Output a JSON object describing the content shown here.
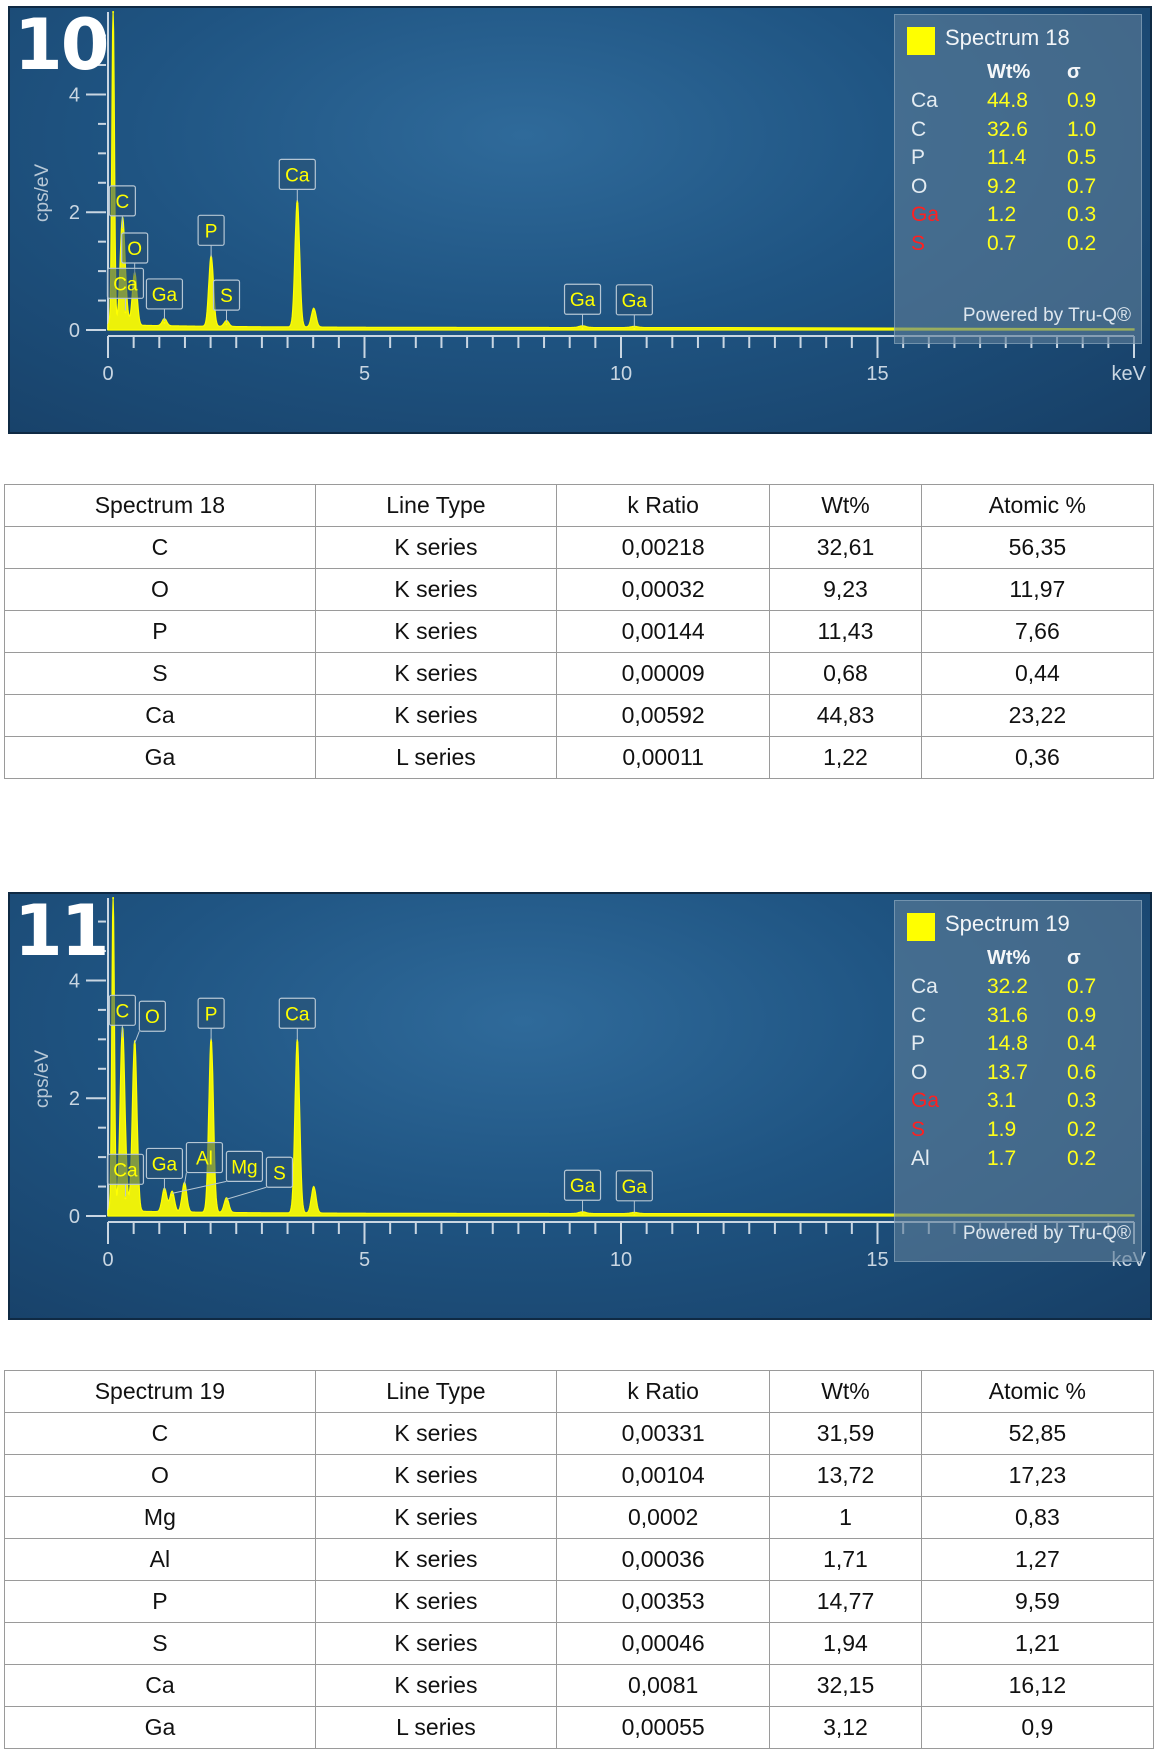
{
  "figures": [
    {
      "number": "10",
      "spectrum_title": "Spectrum 18",
      "powered_by": "Powered by Tru-Q®",
      "legend_headers": {
        "wt": "Wt%",
        "sigma": "σ"
      },
      "legend_rows": [
        {
          "el": "Ca",
          "wt": "44.8",
          "sigma": "0.9",
          "red": false
        },
        {
          "el": "C",
          "wt": "32.6",
          "sigma": "1.0",
          "red": false
        },
        {
          "el": "P",
          "wt": "11.4",
          "sigma": "0.5",
          "red": false
        },
        {
          "el": "O",
          "wt": "9.2",
          "sigma": "0.7",
          "red": false
        },
        {
          "el": "Ga",
          "wt": "1.2",
          "sigma": "0.3",
          "red": true
        },
        {
          "el": "S",
          "wt": "0.7",
          "sigma": "0.2",
          "red": true
        }
      ],
      "table": {
        "headers": [
          "Spectrum 18",
          "Line Type",
          "k Ratio",
          "Wt%",
          "Atomic %"
        ],
        "rows": [
          [
            "C",
            "K series",
            "0,00218",
            "32,61",
            "56,35"
          ],
          [
            "O",
            "K series",
            "0,00032",
            "9,23",
            "11,97"
          ],
          [
            "P",
            "K series",
            "0,00144",
            "11,43",
            "7,66"
          ],
          [
            "S",
            "K series",
            "0,00009",
            "0,68",
            "0,44"
          ],
          [
            "Ca",
            "K series",
            "0,00592",
            "44,83",
            "23,22"
          ],
          [
            "Ga",
            "L series",
            "0,00011",
            "1,22",
            "0,36"
          ]
        ]
      }
    },
    {
      "number": "11",
      "spectrum_title": "Spectrum 19",
      "powered_by": "Powered by Tru-Q®",
      "legend_headers": {
        "wt": "Wt%",
        "sigma": "σ"
      },
      "legend_rows": [
        {
          "el": "Ca",
          "wt": "32.2",
          "sigma": "0.7",
          "red": false
        },
        {
          "el": "C",
          "wt": "31.6",
          "sigma": "0.9",
          "red": false
        },
        {
          "el": "P",
          "wt": "14.8",
          "sigma": "0.4",
          "red": false
        },
        {
          "el": "O",
          "wt": "13.7",
          "sigma": "0.6",
          "red": false
        },
        {
          "el": "Ga",
          "wt": "3.1",
          "sigma": "0.3",
          "red": true
        },
        {
          "el": "S",
          "wt": "1.9",
          "sigma": "0.2",
          "red": true
        },
        {
          "el": "Al",
          "wt": "1.7",
          "sigma": "0.2",
          "red": false
        }
      ],
      "table": {
        "headers": [
          "Spectrum 19",
          "Line Type",
          "k Ratio",
          "Wt%",
          "Atomic %"
        ],
        "rows": [
          [
            "C",
            "K series",
            "0,00331",
            "31,59",
            "52,85"
          ],
          [
            "O",
            "K series",
            "0,00104",
            "13,72",
            "17,23"
          ],
          [
            "Mg",
            "K series",
            "0,0002",
            "1",
            "0,83"
          ],
          [
            "Al",
            "K series",
            "0,00036",
            "1,71",
            "1,27"
          ],
          [
            "P",
            "K series",
            "0,00353",
            "14,77",
            "9,59"
          ],
          [
            "S",
            "K series",
            "0,00046",
            "1,94",
            "1,21"
          ],
          [
            "Ca",
            "K series",
            "0,0081",
            "32,15",
            "16,12"
          ],
          [
            "Ga",
            "L series",
            "0,00055",
            "3,12",
            "0,9"
          ]
        ]
      }
    }
  ],
  "chart_data": [
    {
      "type": "line",
      "xlabel": "keV",
      "ylabel": "cps/eV",
      "xlim": [
        0,
        20
      ],
      "ylim": [
        0,
        5.4
      ],
      "x_ticks": [
        "0",
        "5",
        "10",
        "15"
      ],
      "y_ticks": [
        "0",
        "2",
        "4"
      ],
      "series_color": "#ffff00",
      "peaks": [
        {
          "x": 0.1,
          "y": 5.4
        },
        {
          "x": 0.28,
          "y": 1.7
        },
        {
          "x": 0.34,
          "y": 0.3
        },
        {
          "x": 0.52,
          "y": 0.9
        },
        {
          "x": 1.1,
          "y": 0.12
        },
        {
          "x": 2.01,
          "y": 1.2
        },
        {
          "x": 2.31,
          "y": 0.1
        },
        {
          "x": 3.69,
          "y": 2.15
        },
        {
          "x": 4.01,
          "y": 0.32
        },
        {
          "x": 9.25,
          "y": 0.03
        },
        {
          "x": 10.26,
          "y": 0.02
        }
      ],
      "peak_labels": [
        {
          "text": "C",
          "x": 0.28,
          "y": 1.7
        },
        {
          "text": "O",
          "x": 0.52,
          "y": 0.9
        },
        {
          "text": "Ca",
          "x": 0.34,
          "y": 0.3
        },
        {
          "text": "Ga",
          "x": 1.1,
          "y": 0.12
        },
        {
          "text": "P",
          "x": 2.01,
          "y": 1.2
        },
        {
          "text": "S",
          "x": 2.31,
          "y": 0.1
        },
        {
          "text": "Ca",
          "x": 3.69,
          "y": 2.15
        },
        {
          "text": "Ga",
          "x": 9.25,
          "y": 0.03
        },
        {
          "text": "Ga",
          "x": 10.26,
          "y": 0.02
        }
      ]
    },
    {
      "type": "line",
      "xlabel": "keV",
      "ylabel": "cps/eV",
      "xlim": [
        0,
        20
      ],
      "ylim": [
        0,
        5.4
      ],
      "x_ticks": [
        "0",
        "5",
        "10",
        "15"
      ],
      "y_ticks": [
        "0",
        "2",
        "4"
      ],
      "series_color": "#ffff00",
      "peaks": [
        {
          "x": 0.1,
          "y": 5.4
        },
        {
          "x": 0.28,
          "y": 3.0
        },
        {
          "x": 0.34,
          "y": 0.3
        },
        {
          "x": 0.52,
          "y": 2.9
        },
        {
          "x": 1.1,
          "y": 0.4
        },
        {
          "x": 1.25,
          "y": 0.35
        },
        {
          "x": 1.49,
          "y": 0.5
        },
        {
          "x": 2.01,
          "y": 2.95
        },
        {
          "x": 2.31,
          "y": 0.25
        },
        {
          "x": 3.69,
          "y": 2.95
        },
        {
          "x": 4.01,
          "y": 0.45
        },
        {
          "x": 9.25,
          "y": 0.03
        },
        {
          "x": 10.26,
          "y": 0.02
        }
      ],
      "peak_labels": [
        {
          "text": "C",
          "x": 0.28,
          "y": 3.0
        },
        {
          "text": "O",
          "x": 0.52,
          "y": 2.9
        },
        {
          "text": "Ga",
          "x": 1.1,
          "y": 0.4
        },
        {
          "text": "Al",
          "x": 1.49,
          "y": 0.5
        },
        {
          "text": "Ca",
          "x": 0.34,
          "y": 0.3
        },
        {
          "text": "Mg",
          "x": 1.25,
          "y": 0.35
        },
        {
          "text": "P",
          "x": 2.01,
          "y": 2.95
        },
        {
          "text": "S",
          "x": 2.31,
          "y": 0.25
        },
        {
          "text": "Ca",
          "x": 3.69,
          "y": 2.95
        },
        {
          "text": "Ga",
          "x": 9.25,
          "y": 0.03
        },
        {
          "text": "Ga",
          "x": 10.26,
          "y": 0.02
        }
      ]
    }
  ]
}
